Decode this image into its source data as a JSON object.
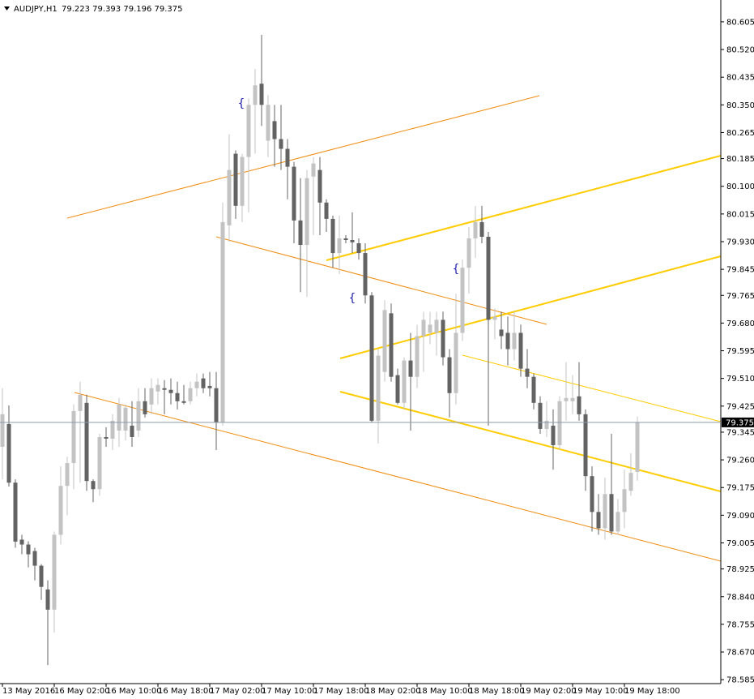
{
  "chart_data": {
    "type": "candlestick",
    "title": "AUDJPY,H1",
    "subtitle": "79.223 79.393 79.196 79.375",
    "categories": [
      "13 May 2016",
      null,
      null,
      null,
      null,
      null,
      null,
      null,
      "16 May 02:00",
      null,
      null,
      null,
      null,
      null,
      null,
      null,
      "16 May 10:00",
      null,
      null,
      null,
      null,
      null,
      null,
      null,
      "16 May 18:00",
      null,
      null,
      null,
      null,
      null,
      null,
      null,
      "17 May 02:00",
      null,
      null,
      null,
      null,
      null,
      null,
      null,
      "17 May 10:00",
      null,
      null,
      null,
      null,
      null,
      null,
      null,
      "17 May 18:00",
      null,
      null,
      null,
      null,
      null,
      null,
      null,
      "18 May 02:00",
      null,
      null,
      null,
      null,
      null,
      null,
      null,
      "18 May 10:00",
      null,
      null,
      null,
      null,
      null,
      null,
      null,
      "18 May 18:00",
      null,
      null,
      null,
      null,
      null,
      null,
      null,
      "19 May 02:00",
      null,
      null,
      null,
      null,
      null,
      null,
      null,
      "19 May 10:00",
      null,
      null,
      null,
      null,
      null,
      null,
      null,
      "19 May 18:00",
      null,
      null
    ],
    "open": [
      79.3,
      79.37,
      79.19,
      79.015,
      79.0,
      78.98,
      78.935,
      78.862,
      78.8,
      79.03,
      79.18,
      79.25,
      79.41,
      79.435,
      79.195,
      79.17,
      79.33,
      79.325,
      79.35,
      79.35,
      79.365,
      79.35,
      79.44,
      79.43,
      79.47,
      79.48,
      79.475,
      79.465,
      79.44,
      79.44,
      79.48,
      79.51,
      79.487,
      79.48,
      79.375,
      79.98,
      80.2,
      80.04,
      80.19,
      80.35,
      80.415,
      80.24,
      80.3,
      80.245,
      80.215,
      80.16,
      79.995,
      79.92,
      80.13,
      80.15,
      80.05,
      80.0,
      79.895,
      79.94,
      79.935,
      79.925,
      79.895,
      79.765,
      79.38,
      79.53,
      79.71,
      79.52,
      79.435,
      79.565,
      79.515,
      79.64,
      79.65,
      79.65,
      79.69,
      79.575,
      79.465,
      79.65,
      79.85,
      79.94,
      79.99,
      79.945,
      79.69,
      79.66,
      79.65,
      79.6,
      79.65,
      79.54,
      79.515,
      79.435,
      79.355,
      79.365,
      79.305,
      79.44,
      79.44,
      79.455,
      79.4,
      79.21,
      79.1,
      79.05,
      79.155,
      79.04,
      79.1,
      79.165,
      79.223
    ],
    "high": [
      79.48,
      79.427,
      79.2,
      79.03,
      79.01,
      78.99,
      78.94,
      78.89,
      79.04,
      79.24,
      79.27,
      79.43,
      79.5,
      79.46,
      79.2,
      79.34,
      79.36,
      79.4,
      79.45,
      79.43,
      79.44,
      79.48,
      79.48,
      79.51,
      79.51,
      79.505,
      79.51,
      79.5,
      79.49,
      79.5,
      79.525,
      79.525,
      79.53,
      79.53,
      80.05,
      80.26,
      80.21,
      80.2,
      80.37,
      80.46,
      80.565,
      80.38,
      80.35,
      80.35,
      80.245,
      80.175,
      80.125,
      80.15,
      80.19,
      80.19,
      80.06,
      80.01,
      80.01,
      79.95,
      80.02,
      79.94,
      79.925,
      79.775,
      79.6,
      79.75,
      79.74,
      79.54,
      79.575,
      79.65,
      79.675,
      79.715,
      79.715,
      79.715,
      79.715,
      79.6,
      79.77,
      79.875,
      79.975,
      80.04,
      80.04,
      79.96,
      79.725,
      79.715,
      79.7,
      79.715,
      79.675,
      79.6,
      79.525,
      79.455,
      79.44,
      79.415,
      79.455,
      79.56,
      79.52,
      79.56,
      79.415,
      79.24,
      79.155,
      79.205,
      79.34,
      79.14,
      79.23,
      79.28,
      79.393
    ],
    "low": [
      79.2,
      79.178,
      78.99,
      78.97,
      78.93,
      78.89,
      78.83,
      78.63,
      78.73,
      79.0,
      79.09,
      79.17,
      79.19,
      79.165,
      79.13,
      79.15,
      79.3,
      79.29,
      79.3,
      79.32,
      79.3,
      79.33,
      79.39,
      79.4,
      79.43,
      79.4,
      79.43,
      79.415,
      79.43,
      79.43,
      79.455,
      79.465,
      79.455,
      79.29,
      79.365,
      79.93,
      80.0,
      79.99,
      80.02,
      80.2,
      80.285,
      80.19,
      80.16,
      80.15,
      80.06,
      79.925,
      79.775,
      79.76,
      79.95,
      79.95,
      79.96,
      79.85,
      79.83,
      79.925,
      79.895,
      79.875,
      79.74,
      79.375,
      79.31,
      79.5,
      79.5,
      79.43,
      79.415,
      79.35,
      79.48,
      79.53,
      79.615,
      79.58,
      79.55,
      79.39,
      79.43,
      79.625,
      79.77,
      79.88,
      79.925,
      79.365,
      79.63,
      79.6,
      79.55,
      79.565,
      79.515,
      79.48,
      79.415,
      79.34,
      79.33,
      79.23,
      79.29,
      79.38,
      79.4,
      79.38,
      79.165,
      79.04,
      79.03,
      79.015,
      79.03,
      79.03,
      79.05,
      79.15,
      79.196
    ],
    "close": [
      79.4,
      79.19,
      79.009,
      79.0,
      78.97,
      78.935,
      78.87,
      78.8,
      79.03,
      79.18,
      79.25,
      79.41,
      79.46,
      79.195,
      79.17,
      79.33,
      79.325,
      79.38,
      79.43,
      79.42,
      79.33,
      79.44,
      79.4,
      79.48,
      79.49,
      79.475,
      79.465,
      79.44,
      79.435,
      79.48,
      79.5,
      79.48,
      79.48,
      79.375,
      79.99,
      80.15,
      80.04,
      80.19,
      80.35,
      80.41,
      80.35,
      80.35,
      80.245,
      80.215,
      80.16,
      79.995,
      79.92,
      80.125,
      80.17,
      80.05,
      80.0,
      79.895,
      79.94,
      79.935,
      79.928,
      79.895,
      79.765,
      79.38,
      79.58,
      79.72,
      79.515,
      79.435,
      79.565,
      79.515,
      79.64,
      79.69,
      79.675,
      79.69,
      79.575,
      79.465,
      79.65,
      79.85,
      79.94,
      79.99,
      79.945,
      79.69,
      79.7,
      79.64,
      79.6,
      79.65,
      79.54,
      79.515,
      79.435,
      79.355,
      79.38,
      79.305,
      79.44,
      79.45,
      79.45,
      79.4,
      79.21,
      79.1,
      79.05,
      79.155,
      79.04,
      79.1,
      79.17,
      79.22,
      79.375
    ],
    "up_color": "#c3c3c3",
    "down_color": "#636363",
    "last_price": 79.375,
    "fractal_markers": [
      "{",
      "{",
      "{"
    ],
    "ylim": [
      78.573,
      80.672
    ],
    "yticks": [
      80.605,
      {
        "value": 80.52,
        "label": "80.520"
      },
      80.435,
      {
        "value": 80.35,
        "label": "80.350"
      },
      80.265,
      80.185,
      {
        "value": 80.1,
        "label": "80.100"
      },
      80.015,
      {
        "value": 79.93,
        "label": "79.930"
      },
      79.845,
      79.765,
      {
        "value": 79.68,
        "label": "79.680"
      },
      79.595,
      {
        "value": 79.51,
        "label": "79.510"
      },
      79.425,
      79.345,
      {
        "value": 79.26,
        "label": "79.260"
      },
      79.175,
      {
        "value": 79.09,
        "label": "79.090"
      },
      79.005,
      78.925,
      {
        "value": 78.84,
        "label": "78.840"
      },
      78.755,
      {
        "value": 78.67,
        "label": "78.670"
      },
      78.585
    ]
  }
}
